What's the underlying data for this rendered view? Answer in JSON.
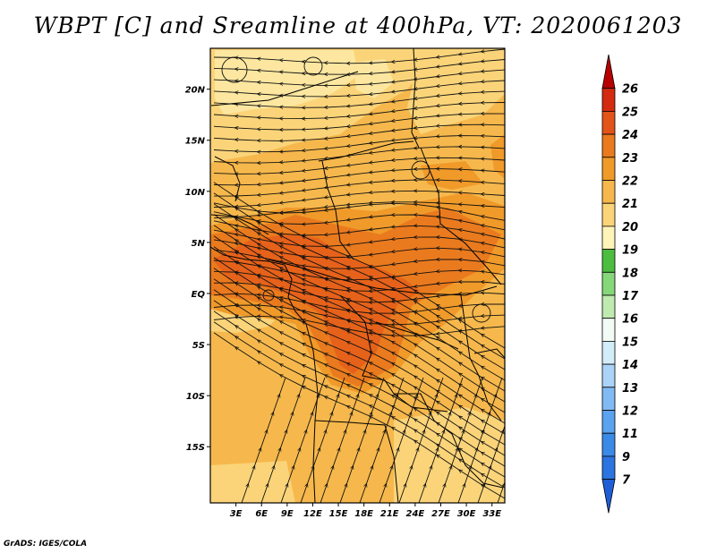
{
  "title": "WBPT [C] and Sreamline at 400hPa, VT: 2020061203",
  "credit": "GrADS: IGES/COLA",
  "map": {
    "lon_range": [
      0,
      34.5
    ],
    "lat_range": [
      -20.5,
      24
    ],
    "lon_ticks": [
      "3E",
      "6E",
      "9E",
      "12E",
      "15E",
      "18E",
      "21E",
      "24E",
      "27E",
      "30E",
      "33E"
    ],
    "lon_tick_values": [
      3,
      6,
      9,
      12,
      15,
      18,
      21,
      24,
      27,
      30,
      33
    ],
    "lat_ticks": [
      "20N",
      "15N",
      "10N",
      "5N",
      "EQ",
      "5S",
      "10S",
      "15S"
    ],
    "lat_tick_values": [
      20,
      15,
      10,
      5,
      0,
      -5,
      -10,
      -15
    ],
    "field": "Wet-bulb potential temperature [C] at 400hPa with streamlines",
    "colors": {
      "bg_20_21": "#f6b84c",
      "band_21_22": "#f09a2a",
      "band_22_23": "#ea7a1e",
      "band_23_24": "#e6621a",
      "band_19_20": "#fbd479",
      "band_18_19": "#fde7a0",
      "streamline": "#111111",
      "border": "#000000"
    }
  },
  "colorbar": {
    "labels": [
      "7",
      "9",
      "11",
      "12",
      "13",
      "14",
      "15",
      "16",
      "17",
      "18",
      "19",
      "20",
      "21",
      "22",
      "23",
      "24",
      "25",
      "26"
    ],
    "colors": [
      "#1f5ed6",
      "#2c74e0",
      "#3b8ae8",
      "#5ba2ef",
      "#82baf3",
      "#abd3f7",
      "#d3ecfa",
      "#f2fbf6",
      "#bfeab0",
      "#86d67a",
      "#4cbd3f",
      "#fef4b8",
      "#fbd479",
      "#f6b84c",
      "#f09a2a",
      "#ea7a1e",
      "#e2541a",
      "#d42a10",
      "#b70000"
    ]
  }
}
